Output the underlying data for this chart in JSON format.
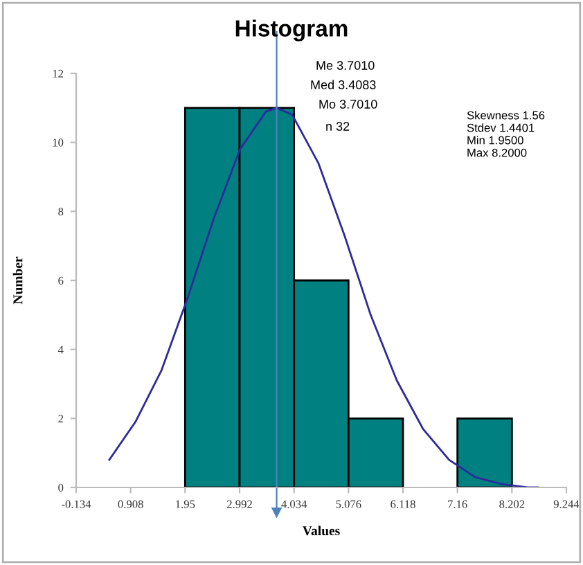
{
  "chart_data": {
    "type": "histogram",
    "title": "Histogram",
    "xlabel": "Values",
    "ylabel": "Number",
    "bins": [
      1.95,
      2.992,
      4.034,
      5.076,
      6.118,
      7.16,
      8.202
    ],
    "values": [
      11,
      11,
      6,
      2,
      0,
      2
    ],
    "color": "#008080",
    "series": [
      {
        "type": "line",
        "color": "#2b2b9a",
        "x": [
          0.5,
          1.0,
          1.5,
          2.0,
          2.5,
          3.0,
          3.5,
          3.7,
          4.0,
          4.5,
          5.0,
          5.5,
          6.0,
          6.5,
          7.0,
          7.5,
          8.0,
          8.5,
          8.7
        ],
        "values": [
          0.8,
          1.9,
          3.4,
          5.5,
          7.8,
          9.8,
          10.9,
          11,
          10.8,
          9.4,
          7.3,
          5.0,
          3.1,
          1.7,
          0.8,
          0.3,
          0.1,
          0.0,
          0.0
        ]
      }
    ],
    "ref_lines": [
      {
        "axis": "x",
        "value": 3.701,
        "color": "#4f81bd"
      }
    ],
    "xlim": [
      -0.134,
      9.244
    ],
    "xticks": [
      -0.134,
      0.908,
      1.95,
      2.992,
      4.034,
      5.076,
      6.118,
      7.16,
      8.202,
      9.244
    ],
    "ylim": [
      0,
      12
    ],
    "yticks": [
      0,
      2,
      4,
      6,
      8,
      10,
      12
    ],
    "grid": false,
    "legend": false,
    "annotations": [
      "Me 3.7010",
      "Med 3.4083",
      "Mo 3.7010",
      "n 32",
      "Skewness 1.56",
      "Stdev 1.4401",
      "Min 1.9500",
      "Max 8.2000"
    ]
  }
}
